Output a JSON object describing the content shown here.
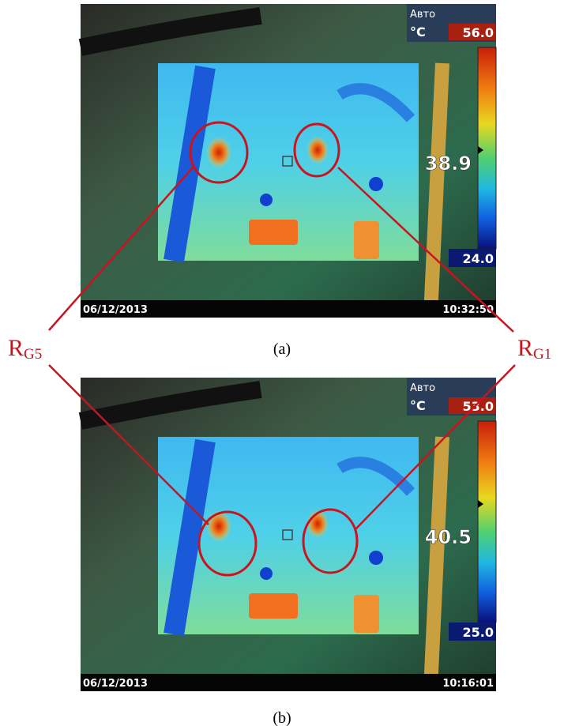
{
  "panels": [
    {
      "mode": "Авто",
      "unit": "°C",
      "max": "56.0",
      "center": "38.9",
      "min": "24.0",
      "date": "06/12/2013",
      "time": "10:32:50",
      "caption": "(a)"
    },
    {
      "mode": "Авто",
      "unit": "°C",
      "max": "53.0",
      "center": "40.5",
      "min": "25.0",
      "date": "06/12/2013",
      "time": "10:16:01",
      "caption": "(b)"
    }
  ],
  "labels": [
    {
      "main": "R",
      "sub": "G5"
    },
    {
      "main": "R",
      "sub": "G1"
    }
  ]
}
